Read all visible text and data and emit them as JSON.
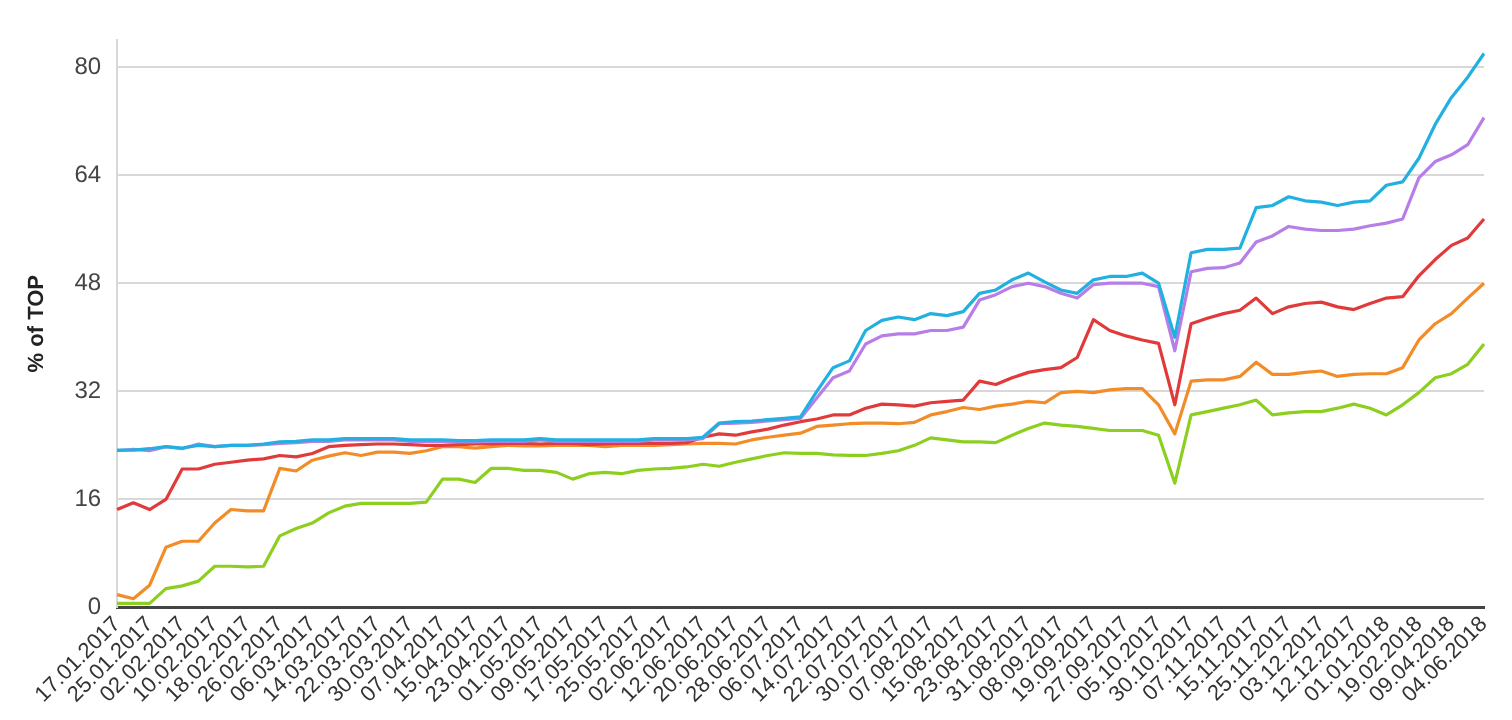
{
  "chart_data": {
    "type": "line",
    "ylabel": "% of TOP",
    "categories": [
      "17.01.2017",
      null,
      "25.01.2017",
      null,
      "02.02.2017",
      null,
      "10.02.2017",
      null,
      "18.02.2017",
      null,
      "26.02.2017",
      null,
      "06.03.2017",
      null,
      "14.03.2017",
      null,
      "22.03.2017",
      null,
      "30.03.2017",
      null,
      "07.04.2017",
      null,
      "15.04.2017",
      null,
      "23.04.2017",
      null,
      "01.05.2017",
      null,
      "09.05.2017",
      null,
      "17.05.2017",
      null,
      "25.05.2017",
      null,
      "02.06.2017",
      null,
      "12.06.2017",
      null,
      "20.06.2017",
      null,
      "28.06.2017",
      null,
      "06.07.2017",
      null,
      "14.07.2017",
      null,
      "22.07.2017",
      null,
      "30.07.2017",
      null,
      "07.08.2017",
      null,
      "15.08.2017",
      null,
      "23.08.2017",
      null,
      "31.08.2017",
      null,
      "08.09.2017",
      null,
      "19.09.2017",
      null,
      "27.09.2017",
      null,
      "05.10.2017",
      null,
      "30.10.2017",
      null,
      "07.11.2017",
      null,
      "15.11.2017",
      null,
      "25.11.2017",
      null,
      "03.12.2017",
      null,
      "12.12.2017",
      null,
      "01.01.2018",
      null,
      "19.02.2018",
      null,
      "09.04.2018",
      null,
      "04.06.2018"
    ],
    "series": [
      {
        "color": "#22b0e0",
        "values": [
          23.3,
          23.3,
          23.5,
          23.8,
          23.6,
          24,
          23.8,
          24,
          24,
          24.2,
          24.5,
          24.6,
          24.8,
          24.8,
          25,
          25,
          25,
          25,
          24.8,
          24.8,
          24.8,
          24.7,
          24.7,
          24.8,
          24.8,
          24.8,
          25,
          24.8,
          24.8,
          24.8,
          24.8,
          24.8,
          24.8,
          25,
          25,
          25,
          25.2,
          27.3,
          27.5,
          27.6,
          27.8,
          28,
          28.2,
          32,
          35.5,
          36.5,
          41,
          42.5,
          43,
          42.6,
          43.5,
          43.2,
          43.8,
          46.5,
          47,
          48.5,
          49.5,
          48.2,
          47,
          46.5,
          48.5,
          49,
          49,
          49.5,
          48,
          40,
          52.5,
          53,
          53,
          53.2,
          59.2,
          59.5,
          60.8,
          60.2,
          60,
          59.5,
          60,
          60.2,
          62.5,
          63,
          66.5,
          71.5,
          75.5,
          78.5,
          82
        ]
      },
      {
        "color": "#b77ee8",
        "values": [
          23.2,
          23.4,
          23.2,
          23.8,
          23.5,
          24.2,
          23.8,
          24,
          24,
          24.1,
          24.3,
          24.4,
          24.6,
          24.6,
          24.8,
          24.8,
          24.8,
          24.8,
          24.6,
          24.6,
          24.6,
          24.5,
          24.5,
          24.6,
          24.6,
          24.6,
          24.8,
          24.6,
          24.6,
          24.6,
          24.6,
          24.6,
          24.6,
          24.8,
          24.8,
          24.8,
          25,
          27.2,
          27.3,
          27.4,
          27.6,
          27.8,
          28,
          31,
          34,
          35,
          39,
          40.2,
          40.5,
          40.5,
          41,
          41,
          41.5,
          45.5,
          46.3,
          47.5,
          48,
          47.5,
          46.5,
          45.8,
          47.8,
          48,
          48,
          48,
          47.5,
          38,
          49.7,
          50.2,
          50.3,
          51,
          54.1,
          55,
          56.4,
          56,
          55.8,
          55.8,
          56,
          56.5,
          56.9,
          57.5,
          63.6,
          66,
          67,
          68.5,
          72.5
        ]
      },
      {
        "color": "#e03a3a",
        "values": [
          14.5,
          15.5,
          14.5,
          16,
          20.5,
          20.5,
          21.2,
          21.5,
          21.8,
          22,
          22.5,
          22.3,
          22.8,
          23.8,
          24,
          24.1,
          24.2,
          24.2,
          24.1,
          24,
          24,
          24.1,
          24.2,
          24.2,
          24.3,
          24.3,
          24.2,
          24.3,
          24.3,
          24.1,
          24.2,
          24.3,
          24.3,
          24.3,
          24.3,
          24.4,
          25.2,
          25.7,
          25.5,
          26,
          26.4,
          27,
          27.5,
          27.9,
          28.5,
          28.5,
          29.5,
          30.1,
          30,
          29.8,
          30.3,
          30.5,
          30.7,
          33.5,
          33,
          34,
          34.8,
          35.2,
          35.5,
          37,
          42.6,
          41,
          40.2,
          39.6,
          39.1,
          30,
          42,
          42.8,
          43.5,
          44,
          45.8,
          43.5,
          44.5,
          45,
          45.2,
          44.5,
          44.1,
          45,
          45.8,
          46,
          49.1,
          51.5,
          53.6,
          54.7,
          57.5
        ]
      },
      {
        "color": "#f28c28",
        "values": [
          1.9,
          1.3,
          3.3,
          8.9,
          9.8,
          9.8,
          12.5,
          14.5,
          14.3,
          14.3,
          20.6,
          20.2,
          21.8,
          22.4,
          22.9,
          22.5,
          23,
          23,
          22.8,
          23.2,
          23.8,
          23.8,
          23.6,
          23.8,
          24,
          23.9,
          23.9,
          24,
          24,
          24,
          23.8,
          24,
          24,
          24,
          24.1,
          24.2,
          24.3,
          24.3,
          24.2,
          24.8,
          25.2,
          25.5,
          25.8,
          26.8,
          27,
          27.2,
          27.3,
          27.3,
          27.2,
          27.4,
          28.5,
          29,
          29.6,
          29.3,
          29.8,
          30.1,
          30.5,
          30.3,
          31.8,
          32,
          31.8,
          32.2,
          32.4,
          32.4,
          30,
          25.7,
          33.5,
          33.7,
          33.7,
          34.2,
          36.3,
          34.5,
          34.5,
          34.8,
          35,
          34.2,
          34.5,
          34.6,
          34.6,
          35.5,
          39.6,
          42,
          43.5,
          45.8,
          48
        ]
      },
      {
        "color": "#8ccf1e",
        "values": [
          0.6,
          0.6,
          0.6,
          2.8,
          3.2,
          3.9,
          6.1,
          6.1,
          6,
          6.1,
          10.6,
          11.7,
          12.5,
          14,
          15,
          15.4,
          15.4,
          15.4,
          15.4,
          15.6,
          19,
          19,
          18.5,
          20.6,
          20.6,
          20.3,
          20.3,
          20,
          19,
          19.8,
          20,
          19.8,
          20.3,
          20.5,
          20.6,
          20.8,
          21.2,
          20.9,
          21.5,
          22,
          22.5,
          22.9,
          22.8,
          22.8,
          22.6,
          22.5,
          22.5,
          22.8,
          23.2,
          24,
          25.1,
          24.8,
          24.5,
          24.5,
          24.4,
          25.5,
          26.5,
          27.3,
          27,
          26.8,
          26.5,
          26.2,
          26.2,
          26.2,
          25.5,
          18.4,
          28.5,
          29,
          29.5,
          30,
          30.7,
          28.5,
          28.8,
          29,
          29,
          29.5,
          30.1,
          29.5,
          28.5,
          30,
          31.8,
          34,
          34.6,
          36,
          39
        ]
      }
    ],
    "ylim": [
      0,
      84
    ],
    "yticks": [
      0,
      16,
      32,
      48,
      64,
      80
    ],
    "grid": "y",
    "legend": false,
    "marker": "none",
    "line_style": "solid"
  }
}
